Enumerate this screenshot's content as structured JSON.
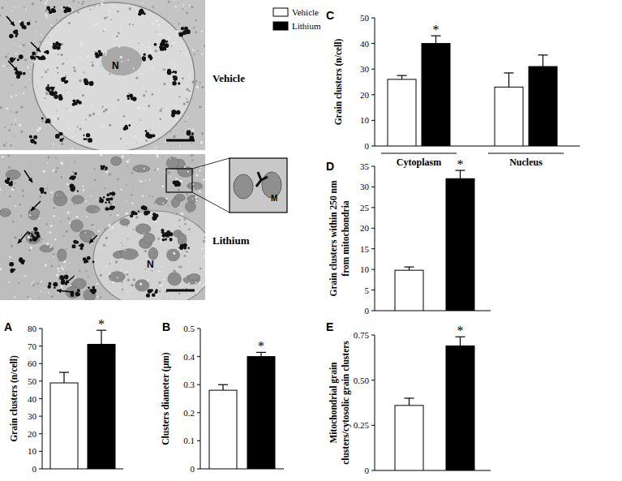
{
  "images": [
    {
      "label": "Vehicle",
      "annotations": [
        "N"
      ]
    },
    {
      "label": "Lithium",
      "annotations": [
        "N",
        "M"
      ]
    }
  ],
  "chart_data": [
    {
      "type": "bar",
      "title": "A",
      "y_label": [
        "Grain clusters (n/cell)"
      ],
      "categories": [
        null
      ],
      "series": [
        {
          "name": "Vehicle",
          "color": "#ffffff",
          "values": [
            49
          ],
          "errors": [
            6
          ]
        },
        {
          "name": "Lithium",
          "color": "#000000",
          "values": [
            71
          ],
          "errors": [
            8
          ]
        }
      ],
      "ylim": [
        0,
        80
      ],
      "yticks": [
        0,
        10,
        20,
        30,
        40,
        50,
        60,
        70,
        80
      ],
      "annotations": [
        {
          "text": "*",
          "series": 1,
          "index": 0
        }
      ]
    },
    {
      "type": "bar",
      "title": "B",
      "y_label": [
        "Clusters diameter (µm)"
      ],
      "categories": [
        null
      ],
      "series": [
        {
          "name": "Vehicle",
          "color": "#ffffff",
          "values": [
            0.28
          ],
          "errors": [
            0.02
          ]
        },
        {
          "name": "Lithium",
          "color": "#000000",
          "values": [
            0.4
          ],
          "errors": [
            0.015
          ]
        }
      ],
      "ylim": [
        0,
        0.5
      ],
      "yticks": [
        0,
        0.1,
        0.2,
        0.3,
        0.4,
        0.5
      ],
      "annotations": [
        {
          "text": "*",
          "series": 1,
          "index": 0
        }
      ]
    },
    {
      "type": "bar",
      "title": "C",
      "y_label": [
        "Grain clusters (n/cell)"
      ],
      "categories": [
        "Cytoplasm",
        "Nucleus"
      ],
      "series": [
        {
          "name": "Vehicle",
          "color": "#ffffff",
          "values": [
            26,
            23
          ],
          "errors": [
            1.5,
            5.5
          ]
        },
        {
          "name": "Lithium",
          "color": "#000000",
          "values": [
            40,
            31
          ],
          "errors": [
            3,
            4.5
          ]
        }
      ],
      "ylim": [
        0,
        50
      ],
      "yticks": [
        0,
        10,
        20,
        30,
        40,
        50
      ],
      "annotations": [
        {
          "text": "*",
          "series": 1,
          "index": 0
        }
      ]
    },
    {
      "type": "bar",
      "title": "D",
      "y_label": [
        "Grain clusters within 250 nm",
        "from mitochondria"
      ],
      "categories": [
        null
      ],
      "series": [
        {
          "name": "Vehicle",
          "color": "#ffffff",
          "values": [
            9.8
          ],
          "errors": [
            0.8
          ]
        },
        {
          "name": "Lithium",
          "color": "#000000",
          "values": [
            32
          ],
          "errors": [
            2
          ]
        }
      ],
      "ylim": [
        0,
        35
      ],
      "yticks": [
        0,
        5,
        10,
        15,
        20,
        25,
        30,
        35
      ],
      "annotations": [
        {
          "text": "*",
          "series": 1,
          "index": 0
        }
      ]
    },
    {
      "type": "bar",
      "title": "E",
      "y_label": [
        "Mitochondrial grain",
        "clusters/cytosolic grain clusters"
      ],
      "categories": [
        null
      ],
      "series": [
        {
          "name": "Vehicle",
          "color": "#ffffff",
          "values": [
            0.36
          ],
          "errors": [
            0.04
          ]
        },
        {
          "name": "Lithium",
          "color": "#000000",
          "values": [
            0.69
          ],
          "errors": [
            0.05
          ]
        }
      ],
      "ylim": [
        0,
        0.75
      ],
      "yticks": [
        0,
        0.25,
        {
          "value": 0.5,
          "label": "0.50"
        },
        0.75
      ],
      "annotations": [
        {
          "text": "*",
          "series": 1,
          "index": 0
        }
      ]
    }
  ]
}
